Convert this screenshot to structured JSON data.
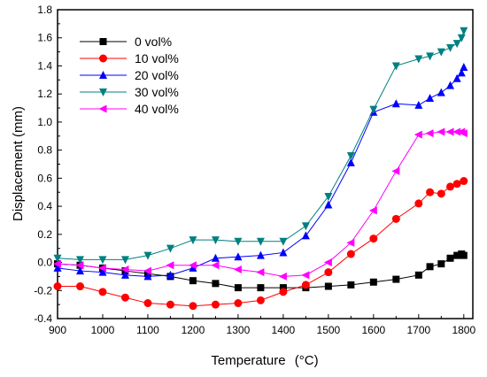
{
  "chart_data": {
    "type": "line",
    "xlabel": "Temperature",
    "xlabel_unit": "(°C)",
    "ylabel": "Displacement (mm)",
    "xlim": [
      900,
      1820
    ],
    "ylim": [
      -0.4,
      1.8
    ],
    "xticks": [
      "900",
      "1000",
      "1100",
      "1200",
      "1300",
      "1400",
      "1500",
      "1600",
      "1700",
      "1800"
    ],
    "yticks": [
      "-0.4",
      "-0.2",
      "0.0",
      "0.2",
      "0.4",
      "0.6",
      "0.8",
      "1.0",
      "1.2",
      "1.4",
      "1.6",
      "1.8"
    ],
    "grid": false,
    "legend_position": "top-left",
    "series": [
      {
        "name": "0  vol%",
        "color": "#000000",
        "marker": "square",
        "x": [
          900,
          950,
          1000,
          1050,
          1100,
          1150,
          1200,
          1250,
          1300,
          1350,
          1400,
          1450,
          1500,
          1550,
          1600,
          1650,
          1700,
          1725,
          1750,
          1770,
          1785,
          1795,
          1800
        ],
        "y": [
          -0.01,
          -0.02,
          -0.04,
          -0.06,
          -0.08,
          -0.1,
          -0.13,
          -0.15,
          -0.18,
          -0.18,
          -0.18,
          -0.18,
          -0.17,
          -0.16,
          -0.14,
          -0.12,
          -0.09,
          -0.03,
          -0.01,
          0.03,
          0.05,
          0.06,
          0.05
        ]
      },
      {
        "name": "10 vol%",
        "color": "#ff0000",
        "marker": "circle",
        "x": [
          900,
          950,
          1000,
          1050,
          1100,
          1150,
          1200,
          1250,
          1300,
          1350,
          1400,
          1450,
          1500,
          1550,
          1600,
          1650,
          1700,
          1725,
          1750,
          1770,
          1785,
          1800
        ],
        "y": [
          -0.17,
          -0.17,
          -0.21,
          -0.25,
          -0.29,
          -0.3,
          -0.31,
          -0.3,
          -0.29,
          -0.27,
          -0.21,
          -0.16,
          -0.07,
          0.06,
          0.17,
          0.31,
          0.42,
          0.5,
          0.49,
          0.54,
          0.56,
          0.58
        ]
      },
      {
        "name": "20 vol%",
        "color": "#0000ff",
        "marker": "triangle-up",
        "x": [
          900,
          950,
          1000,
          1050,
          1100,
          1150,
          1200,
          1250,
          1300,
          1350,
          1400,
          1450,
          1500,
          1550,
          1600,
          1650,
          1700,
          1725,
          1750,
          1770,
          1785,
          1795,
          1800
        ],
        "y": [
          -0.04,
          -0.06,
          -0.07,
          -0.09,
          -0.1,
          -0.09,
          -0.04,
          0.03,
          0.04,
          0.05,
          0.07,
          0.19,
          0.41,
          0.71,
          1.07,
          1.13,
          1.12,
          1.17,
          1.21,
          1.26,
          1.31,
          1.35,
          1.39
        ]
      },
      {
        "name": "30 vol%",
        "color": "#008080",
        "marker": "triangle-down",
        "x": [
          900,
          950,
          1000,
          1050,
          1100,
          1150,
          1200,
          1250,
          1300,
          1350,
          1400,
          1450,
          1500,
          1550,
          1600,
          1650,
          1700,
          1725,
          1750,
          1770,
          1785,
          1795,
          1800
        ],
        "y": [
          0.03,
          0.02,
          0.02,
          0.02,
          0.05,
          0.1,
          0.16,
          0.16,
          0.15,
          0.15,
          0.15,
          0.26,
          0.47,
          0.76,
          1.09,
          1.4,
          1.45,
          1.47,
          1.5,
          1.53,
          1.56,
          1.6,
          1.65
        ]
      },
      {
        "name": "40 vol%",
        "color": "#ff00ff",
        "marker": "triangle-left",
        "x": [
          900,
          950,
          1000,
          1050,
          1100,
          1150,
          1200,
          1250,
          1300,
          1350,
          1400,
          1450,
          1500,
          1550,
          1600,
          1650,
          1700,
          1725,
          1750,
          1770,
          1785,
          1795,
          1800
        ],
        "y": [
          -0.01,
          -0.02,
          -0.04,
          -0.05,
          -0.06,
          -0.02,
          -0.02,
          -0.02,
          -0.05,
          -0.07,
          -0.1,
          -0.09,
          0.0,
          0.14,
          0.37,
          0.65,
          0.91,
          0.92,
          0.93,
          0.93,
          0.93,
          0.93,
          0.92
        ]
      }
    ]
  }
}
